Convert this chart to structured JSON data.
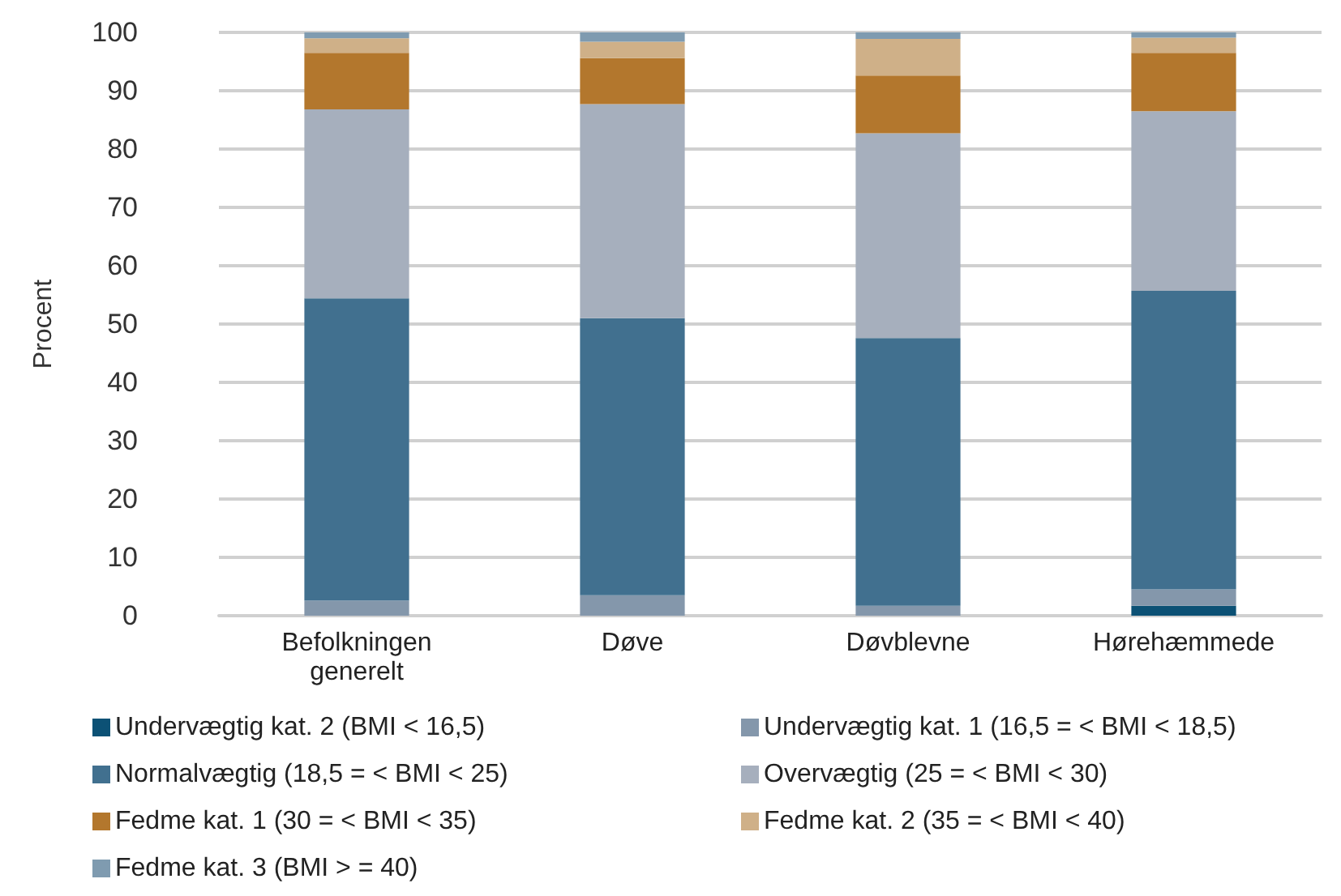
{
  "chart_data": {
    "type": "bar",
    "stacked": true,
    "ylabel": "Procent",
    "categories": [
      "Befolkningen\ngenerelt",
      "Døve",
      "Døvblevne",
      "Hørehæmmede"
    ],
    "series": [
      {
        "name": "Undervægtig kat. 2 (BMI < 16,5)",
        "color": "#0c5175",
        "values": [
          0,
          0,
          0,
          1.7
        ]
      },
      {
        "name": "Undervægtig kat. 1 (16,5 = < BMI < 18,5)",
        "color": "#8497ab",
        "values": [
          2.6,
          3.5,
          1.7,
          2.8
        ]
      },
      {
        "name": "Normalvægtig (18,5 = < BMI < 25)",
        "color": "#41708f",
        "values": [
          51.8,
          47.5,
          45.9,
          51.2
        ]
      },
      {
        "name": "Overvægtig (25 = < BMI < 30)",
        "color": "#a6afbd",
        "values": [
          32.4,
          36.7,
          35.1,
          30.8
        ]
      },
      {
        "name": "Fedme kat. 1 (30 = < BMI < 35)",
        "color": "#b3772d",
        "values": [
          9.7,
          7.9,
          9.9,
          10.0
        ]
      },
      {
        "name": "Fedme kat. 2 (35 = < BMI < 40)",
        "color": "#cfb088",
        "values": [
          2.5,
          2.8,
          6.3,
          2.6
        ]
      },
      {
        "name": "Fedme kat. 3 (BMI > = 40)",
        "color": "#7f9bb0",
        "values": [
          1.0,
          1.6,
          1.1,
          0.9
        ]
      }
    ],
    "ylim": [
      0,
      100
    ],
    "yticks": [
      0,
      10,
      20,
      30,
      40,
      50,
      60,
      70,
      80,
      90,
      100
    ],
    "grid": "y",
    "legend": "bottom"
  }
}
